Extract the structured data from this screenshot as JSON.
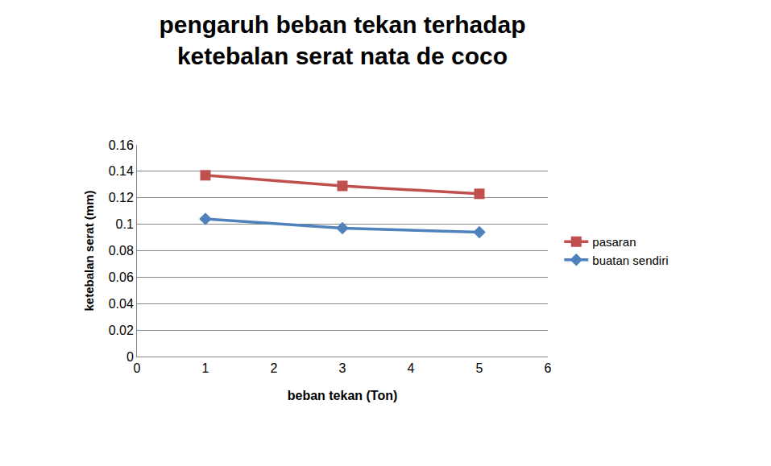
{
  "chart_data": {
    "type": "line",
    "title": "pengaruh beban tekan terhadap ketebalan serat nata de coco",
    "x_label": "beban tekan (Ton)",
    "y_label": "ketebalan serat (mm)",
    "x": [
      1,
      3,
      5
    ],
    "series": [
      {
        "name": "pasaran",
        "color": "#c0504d",
        "marker": "square",
        "line_style": "solid",
        "values": [
          0.137,
          0.129,
          0.123
        ]
      },
      {
        "name": "buatan sendiri",
        "color": "#4f81bd",
        "marker": "diamond",
        "line_style": "solid",
        "values": [
          0.104,
          0.097,
          0.094
        ]
      }
    ],
    "xlim": [
      0,
      6
    ],
    "xticks": [
      0,
      1,
      2,
      3,
      4,
      5,
      6
    ],
    "ylim": [
      0,
      0.16
    ],
    "yticks": [
      0,
      0.02,
      0.04,
      0.06,
      0.08,
      0.1,
      0.12,
      0.14,
      0.16
    ],
    "grid": true,
    "legend": "right"
  }
}
